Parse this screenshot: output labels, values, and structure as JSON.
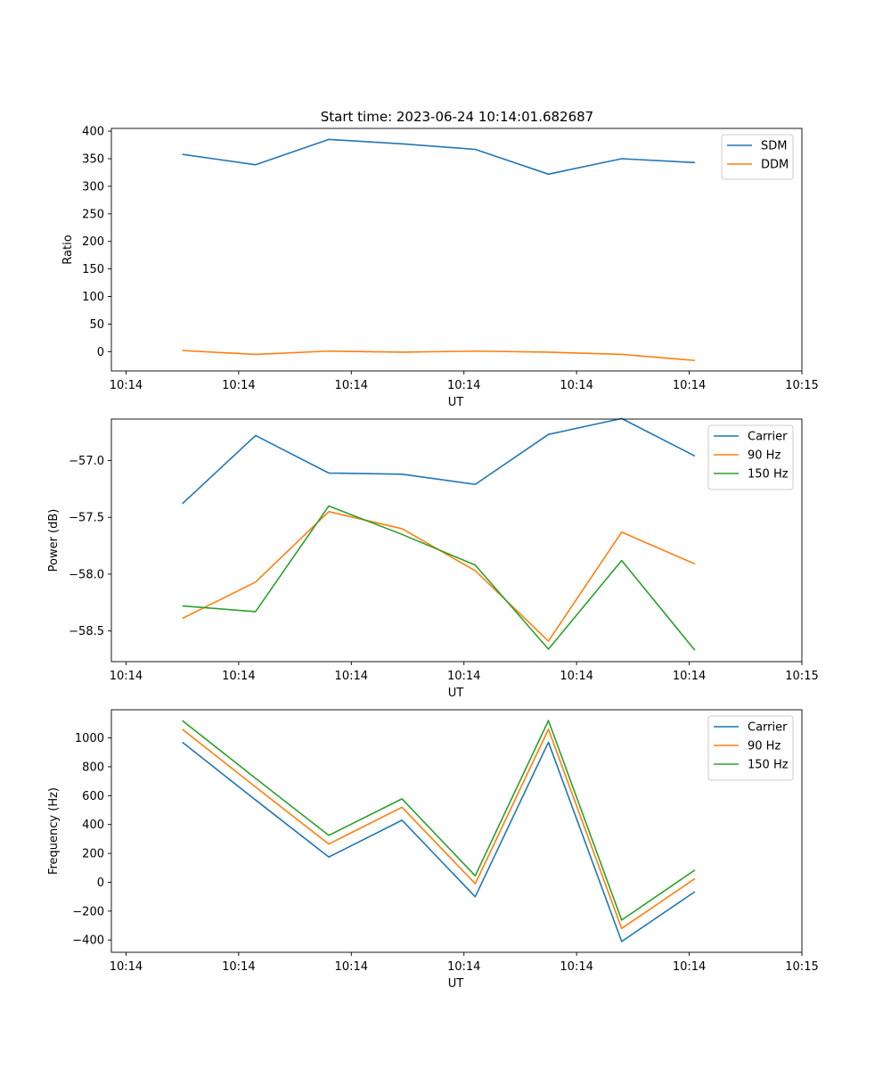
{
  "figure": {
    "title": "Start time: 2023-06-24 10:14:01.682687"
  },
  "chart_data": [
    {
      "type": "line",
      "title": "Start time: 2023-06-24 10:14:01.682687",
      "xlabel": "UT",
      "ylabel": "Ratio",
      "x_tick_labels": [
        "10:14",
        "10:14",
        "10:14",
        "10:14",
        "10:14",
        "10:14",
        "10:14"
      ],
      "x_tick_labels_last": "10:15",
      "x_points": [
        0.5,
        1.15,
        1.8,
        2.45,
        3.1,
        3.75,
        4.4,
        5.05
      ],
      "x_ticks": [
        0,
        1,
        2,
        3,
        4,
        5,
        6
      ],
      "xlim": [
        -0.13,
        6.0
      ],
      "yticks": [
        0,
        50,
        100,
        150,
        200,
        250,
        300,
        350,
        400
      ],
      "ylim": [
        -35,
        405
      ],
      "legend": "top-right",
      "grid": false,
      "series": [
        {
          "name": "SDM",
          "color": "#1f77b4",
          "values": [
            358,
            339,
            385,
            377,
            367,
            322,
            350,
            343
          ]
        },
        {
          "name": "DDM",
          "color": "#ff7f0e",
          "values": [
            2,
            -5,
            1,
            -1,
            1,
            -1,
            -5,
            -16
          ]
        }
      ]
    },
    {
      "type": "line",
      "xlabel": "UT",
      "ylabel": "Power (dB)",
      "x_tick_labels": [
        "10:14",
        "10:14",
        "10:14",
        "10:14",
        "10:14",
        "10:14",
        "10:14"
      ],
      "x_tick_labels_last": "10:15",
      "x_points": [
        0.5,
        1.15,
        1.8,
        2.45,
        3.1,
        3.75,
        4.4,
        5.05
      ],
      "x_ticks": [
        0,
        1,
        2,
        3,
        4,
        5,
        6
      ],
      "xlim": [
        -0.13,
        6.0
      ],
      "yticks": [
        -57.0,
        -57.5,
        -58.0,
        -58.5
      ],
      "ytick_labels": [
        "−57.0",
        "−57.5",
        "−58.0",
        "−58.5"
      ],
      "ylim": [
        -58.77,
        -56.635
      ],
      "legend": "top-right",
      "grid": false,
      "series": [
        {
          "name": "Carrier",
          "color": "#1f77b4",
          "values": [
            -57.38,
            -56.78,
            -57.11,
            -57.12,
            -57.21,
            -56.77,
            -56.63,
            -56.96
          ]
        },
        {
          "name": "90 Hz",
          "color": "#ff7f0e",
          "values": [
            -58.39,
            -58.07,
            -57.45,
            -57.6,
            -57.97,
            -58.59,
            -57.63,
            -57.91
          ]
        },
        {
          "name": "150 Hz",
          "color": "#2ca02c",
          "values": [
            -58.28,
            -58.33,
            -57.4,
            -57.65,
            -57.92,
            -58.66,
            -57.88,
            -58.67
          ]
        }
      ]
    },
    {
      "type": "line",
      "xlabel": "UT",
      "ylabel": "Frequency (Hz)",
      "x_tick_labels": [
        "10:14",
        "10:14",
        "10:14",
        "10:14",
        "10:14",
        "10:14",
        "10:14"
      ],
      "x_tick_labels_last": "10:15",
      "x_points": [
        0.5,
        1.15,
        1.8,
        2.45,
        3.1,
        3.75,
        4.4,
        5.05
      ],
      "x_ticks": [
        0,
        1,
        2,
        3,
        4,
        5,
        6
      ],
      "xlim": [
        -0.13,
        6.0
      ],
      "yticks": [
        -400,
        -200,
        0,
        200,
        400,
        600,
        800,
        1000
      ],
      "ytick_labels": [
        "−400",
        "−200",
        "0",
        "200",
        "400",
        "600",
        "800",
        "1000"
      ],
      "ylim": [
        -485,
        1195
      ],
      "legend": "top-right",
      "grid": false,
      "series": [
        {
          "name": "Carrier",
          "color": "#1f77b4",
          "values": [
            970,
            570,
            175,
            430,
            -100,
            970,
            -410,
            -65
          ]
        },
        {
          "name": "90 Hz",
          "color": "#ff7f0e",
          "values": [
            1060,
            660,
            265,
            520,
            -10,
            1060,
            -320,
            25
          ]
        },
        {
          "name": "150 Hz",
          "color": "#2ca02c",
          "values": [
            1120,
            720,
            325,
            578,
            45,
            1120,
            -262,
            85
          ]
        }
      ]
    }
  ]
}
